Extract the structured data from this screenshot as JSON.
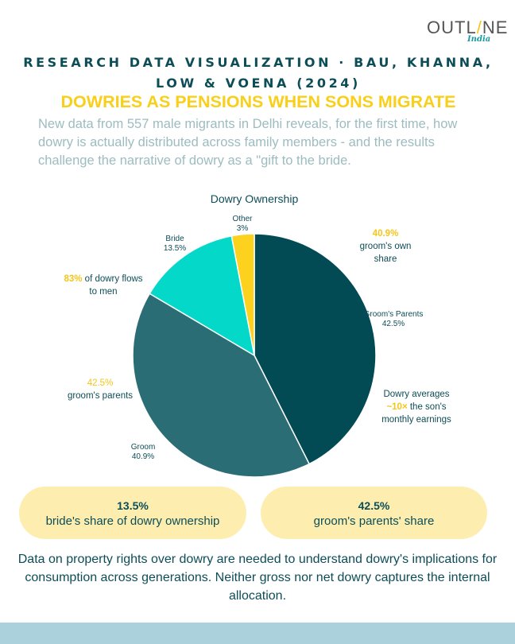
{
  "logo": {
    "text_a": "OUTL",
    "text_slash": "/",
    "text_b": "NE",
    "sub": "India"
  },
  "kicker": "RESEARCH DATA VISUALIZATION · BAU, KHANNA, LOW & VOENA (2024)",
  "headline": "DOWRIES AS PENSIONS WHEN SONS MIGRATE",
  "lede": "New data from 557 male migrants in Delhi reveals, for the first time, how dowry is actually distributed across family members - and the results challenge the narrative of dowry as a \"gift to the bride.",
  "chart_data": {
    "type": "pie",
    "title": "Dowry Ownership",
    "start": "top, clockwise",
    "slices": [
      {
        "name": "Groom's Parents",
        "value": 42.5,
        "label": "42.5%",
        "color": "#024b55"
      },
      {
        "name": "Groom",
        "value": 40.9,
        "label": "40.9%",
        "color": "#2b6d74"
      },
      {
        "name": "Bride",
        "value": 13.5,
        "label": "13.5%",
        "color": "#04d9c9"
      },
      {
        "name": "Other",
        "value": 3,
        "label": "3%",
        "color": "#fdd21e"
      }
    ]
  },
  "annotations": {
    "groom_share": {
      "value": "40.9%",
      "text": "groom's own share"
    },
    "men": {
      "value": "83%",
      "text": " of dowry flows to men"
    },
    "parents": {
      "value": "42.5%",
      "text": "groom's parents"
    },
    "earnings": {
      "pre": "Dowry averages",
      "value": "~10×",
      "post": " the son's monthly earnings"
    }
  },
  "pills": [
    {
      "value": "13.5%",
      "text": "bride's share of dowry ownership"
    },
    {
      "value": "42.5%",
      "text": "groom's parents' share"
    }
  ],
  "footer": "Data on property rights over dowry are needed to understand dowry's implications for consumption across generations. Neither gross nor net dowry captures the internal allocation."
}
